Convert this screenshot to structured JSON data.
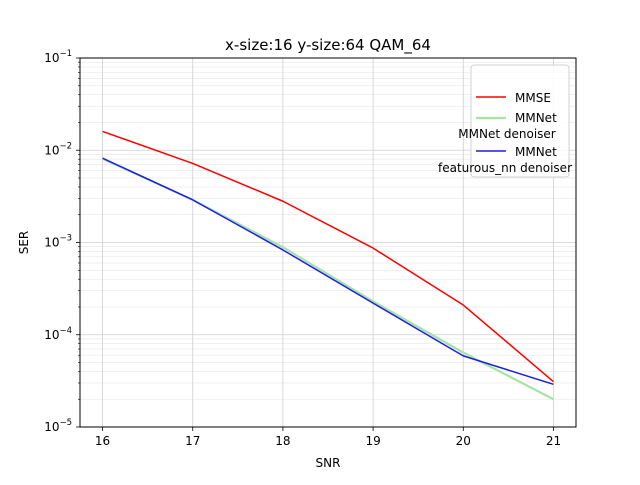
{
  "chart_data": {
    "type": "line",
    "title": "x-size:16 y-size:64 QAM_64",
    "xlabel": "SNR",
    "ylabel": "SER",
    "x": [
      16,
      17,
      18,
      19,
      20,
      21
    ],
    "x_ticks": [
      "16",
      "17",
      "18",
      "19",
      "20",
      "21"
    ],
    "xlim": [
      15.75,
      21.25
    ],
    "y_scale": "log",
    "ylim": [
      1e-05,
      0.1
    ],
    "y_ticks": [
      {
        "base": "10",
        "exp": "−1",
        "value": 0.1
      },
      {
        "base": "10",
        "exp": "−2",
        "value": 0.01
      },
      {
        "base": "10",
        "exp": "−3",
        "value": 0.001
      },
      {
        "base": "10",
        "exp": "−4",
        "value": 0.0001
      },
      {
        "base": "10",
        "exp": "−5",
        "value": 1e-05
      }
    ],
    "grid": true,
    "minor_grid": true,
    "legend_position": "top-right",
    "series": [
      {
        "name": "MMSE",
        "legend_lines": [
          "MMSE"
        ],
        "color": "#ff0000",
        "values": [
          0.016,
          0.0072,
          0.0028,
          0.00087,
          0.00021,
          3.1e-05
        ]
      },
      {
        "name": "MMNet MMNet denoiser",
        "legend_lines": [
          "MMNet",
          "MMNet denoiser"
        ],
        "color": "#a6e3a6",
        "values": [
          0.0081,
          0.0029,
          0.00089,
          0.00023,
          6.4e-05,
          2e-05
        ]
      },
      {
        "name": "MMNet featurous_nn denoiser",
        "legend_lines": [
          "MMNet",
          "featurous_nn denoiser"
        ],
        "color": "#1f1fe0",
        "values": [
          0.0082,
          0.0029,
          0.00083,
          0.00022,
          5.9e-05,
          2.9e-05
        ]
      }
    ]
  }
}
